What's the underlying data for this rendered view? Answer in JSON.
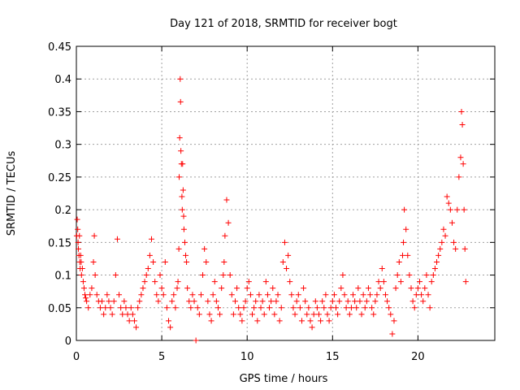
{
  "chart_data": {
    "type": "scatter",
    "title": "Day 121 of 2018, SRMTID for receiver bogt",
    "xlabel": "GPS time / hours",
    "ylabel": "SRMTID / TECUs",
    "xlim": [
      0,
      24.5
    ],
    "ylim": [
      0,
      0.45
    ],
    "xticks": [
      0,
      5,
      10,
      15,
      20
    ],
    "xtick_labels": [
      "0",
      "5",
      "10",
      "15",
      "20"
    ],
    "yticks": [
      0,
      0.05,
      0.1,
      0.15,
      0.2,
      0.25,
      0.3,
      0.35,
      0.4,
      0.45
    ],
    "ytick_labels": [
      "0",
      "0.05",
      "0.1",
      "0.15",
      "0.2",
      "0.25",
      "0.3",
      "0.35",
      "0.4",
      "0.45"
    ],
    "grid": true,
    "marker": "+",
    "series_color": "#ff0000",
    "series": [
      {
        "name": "SRMTID",
        "x": [
          0.02,
          0.05,
          0.08,
          0.1,
          0.12,
          0.15,
          0.18,
          0.2,
          0.22,
          0.25,
          0.28,
          0.3,
          0.35,
          0.4,
          0.45,
          0.5,
          0.55,
          0.6,
          0.7,
          0.8,
          0.9,
          1.0,
          1.05,
          1.1,
          1.2,
          1.3,
          1.4,
          1.5,
          1.6,
          1.7,
          1.8,
          1.9,
          2.0,
          2.1,
          2.2,
          2.3,
          2.4,
          2.5,
          2.6,
          2.7,
          2.8,
          2.9,
          3.0,
          3.1,
          3.2,
          3.3,
          3.4,
          3.5,
          3.6,
          3.7,
          3.8,
          3.9,
          4.0,
          4.1,
          4.2,
          4.3,
          4.4,
          4.5,
          4.6,
          4.7,
          4.8,
          4.9,
          5.0,
          5.1,
          5.2,
          5.3,
          5.4,
          5.5,
          5.6,
          5.7,
          5.8,
          5.9,
          5.95,
          6.0,
          6.02,
          6.05,
          6.08,
          6.1,
          6.12,
          6.15,
          6.18,
          6.2,
          6.22,
          6.25,
          6.28,
          6.3,
          6.35,
          6.4,
          6.45,
          6.5,
          6.6,
          6.7,
          6.8,
          6.9,
          7.0,
          7.1,
          7.2,
          7.3,
          7.4,
          7.5,
          7.6,
          7.7,
          7.8,
          7.9,
          8.0,
          8.1,
          8.2,
          8.3,
          8.4,
          8.5,
          8.6,
          8.65,
          8.7,
          8.8,
          8.9,
          9.0,
          9.1,
          9.2,
          9.3,
          9.4,
          9.5,
          9.6,
          9.7,
          9.8,
          9.9,
          10.0,
          10.1,
          10.2,
          10.3,
          10.4,
          10.5,
          10.6,
          10.7,
          10.8,
          10.9,
          11.0,
          11.1,
          11.2,
          11.3,
          11.4,
          11.5,
          11.6,
          11.7,
          11.8,
          11.9,
          12.0,
          12.1,
          12.2,
          12.3,
          12.4,
          12.5,
          12.6,
          12.7,
          12.8,
          12.9,
          13.0,
          13.1,
          13.2,
          13.3,
          13.4,
          13.5,
          13.6,
          13.7,
          13.8,
          13.9,
          14.0,
          14.1,
          14.2,
          14.3,
          14.4,
          14.5,
          14.6,
          14.7,
          14.8,
          14.9,
          15.0,
          15.1,
          15.2,
          15.3,
          15.4,
          15.5,
          15.6,
          15.7,
          15.8,
          15.9,
          16.0,
          16.1,
          16.2,
          16.3,
          16.4,
          16.5,
          16.6,
          16.7,
          16.8,
          16.9,
          17.0,
          17.1,
          17.2,
          17.3,
          17.4,
          17.5,
          17.6,
          17.7,
          17.8,
          17.9,
          18.0,
          18.1,
          18.2,
          18.3,
          18.4,
          18.5,
          18.6,
          18.7,
          18.8,
          18.9,
          19.0,
          19.1,
          19.15,
          19.2,
          19.3,
          19.4,
          19.5,
          19.6,
          19.7,
          19.8,
          19.9,
          20.0,
          20.1,
          20.2,
          20.3,
          20.4,
          20.5,
          20.6,
          20.7,
          20.8,
          20.9,
          21.0,
          21.1,
          21.2,
          21.3,
          21.4,
          21.5,
          21.6,
          21.7,
          21.8,
          21.9,
          22.0,
          22.1,
          22.2,
          22.3,
          22.4,
          22.5,
          22.55,
          22.6,
          22.65,
          22.7,
          22.75,
          22.8
        ],
        "y": [
          0.16,
          0.185,
          0.17,
          0.15,
          0.14,
          0.13,
          0.16,
          0.12,
          0.11,
          0.13,
          0.12,
          0.1,
          0.11,
          0.09,
          0.08,
          0.07,
          0.065,
          0.06,
          0.05,
          0.07,
          0.08,
          0.12,
          0.16,
          0.1,
          0.07,
          0.06,
          0.05,
          0.06,
          0.04,
          0.05,
          0.07,
          0.06,
          0.05,
          0.04,
          0.06,
          0.1,
          0.155,
          0.07,
          0.05,
          0.04,
          0.06,
          0.05,
          0.04,
          0.03,
          0.05,
          0.04,
          0.03,
          0.02,
          0.05,
          0.06,
          0.07,
          0.08,
          0.09,
          0.1,
          0.11,
          0.13,
          0.155,
          0.12,
          0.09,
          0.07,
          0.06,
          0.1,
          0.08,
          0.07,
          0.12,
          0.05,
          0.03,
          0.02,
          0.06,
          0.07,
          0.05,
          0.08,
          0.09,
          0.14,
          0.25,
          0.31,
          0.4,
          0.365,
          0.29,
          0.27,
          0.22,
          0.2,
          0.27,
          0.23,
          0.19,
          0.17,
          0.15,
          0.13,
          0.12,
          0.08,
          0.06,
          0.05,
          0.07,
          0.06,
          0.0,
          0.05,
          0.04,
          0.07,
          0.1,
          0.14,
          0.12,
          0.06,
          0.04,
          0.03,
          0.07,
          0.09,
          0.06,
          0.05,
          0.04,
          0.08,
          0.1,
          0.12,
          0.16,
          0.215,
          0.18,
          0.1,
          0.07,
          0.04,
          0.06,
          0.08,
          0.05,
          0.04,
          0.03,
          0.05,
          0.06,
          0.08,
          0.09,
          0.07,
          0.04,
          0.05,
          0.06,
          0.03,
          0.07,
          0.05,
          0.06,
          0.04,
          0.09,
          0.07,
          0.05,
          0.06,
          0.08,
          0.04,
          0.06,
          0.07,
          0.03,
          0.05,
          0.12,
          0.15,
          0.11,
          0.13,
          0.09,
          0.07,
          0.05,
          0.04,
          0.06,
          0.07,
          0.05,
          0.03,
          0.08,
          0.06,
          0.04,
          0.05,
          0.03,
          0.02,
          0.04,
          0.06,
          0.05,
          0.04,
          0.03,
          0.06,
          0.05,
          0.07,
          0.04,
          0.03,
          0.05,
          0.06,
          0.07,
          0.05,
          0.04,
          0.06,
          0.08,
          0.1,
          0.07,
          0.05,
          0.06,
          0.04,
          0.05,
          0.07,
          0.06,
          0.05,
          0.08,
          0.06,
          0.04,
          0.07,
          0.05,
          0.06,
          0.08,
          0.07,
          0.05,
          0.04,
          0.06,
          0.07,
          0.09,
          0.08,
          0.11,
          0.09,
          0.07,
          0.06,
          0.05,
          0.04,
          0.01,
          0.03,
          0.08,
          0.1,
          0.12,
          0.09,
          0.13,
          0.15,
          0.2,
          0.17,
          0.13,
          0.1,
          0.08,
          0.06,
          0.05,
          0.07,
          0.08,
          0.09,
          0.07,
          0.06,
          0.08,
          0.1,
          0.07,
          0.05,
          0.09,
          0.1,
          0.11,
          0.12,
          0.13,
          0.14,
          0.15,
          0.17,
          0.16,
          0.22,
          0.21,
          0.2,
          0.18,
          0.15,
          0.14,
          0.2,
          0.25,
          0.28,
          0.35,
          0.33,
          0.27,
          0.2,
          0.14,
          0.09
        ]
      }
    ]
  }
}
